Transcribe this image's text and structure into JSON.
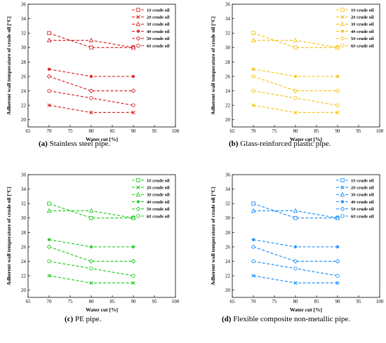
{
  "marker_order": [
    "square",
    "x",
    "triangle",
    "asterisk",
    "diamond",
    "circle"
  ],
  "charts": [
    {
      "panel": "a",
      "color": "#d62728",
      "caption": {
        "label": "(a)",
        "text": " Stainless steel pipe."
      },
      "xlabel": "Water cut [%]",
      "ylabel": "Adherent wall temperature of crude oil [°C]",
      "xticks": [
        "65",
        "70",
        "75",
        "80",
        "85",
        "90",
        "95",
        "100"
      ],
      "yticks": [
        "20",
        "22",
        "24",
        "26",
        "28",
        "30",
        "32",
        "34",
        "36"
      ]
    },
    {
      "panel": "b",
      "color": "#f5c518",
      "caption": {
        "label": "(b)",
        "text": " Glass-reinforced plastic pipe."
      },
      "xlabel": "Water cut [%]",
      "ylabel": "Adherent wall temperature of crude oil [°C]",
      "xticks": [
        "65",
        "70",
        "75",
        "80",
        "85",
        "90",
        "95",
        "100"
      ],
      "yticks": [
        "20",
        "22",
        "24",
        "26",
        "28",
        "30",
        "32",
        "34",
        "36"
      ]
    },
    {
      "panel": "c",
      "color": "#22cc22",
      "caption": {
        "label": "(c)",
        "text": " PE pipe."
      },
      "xlabel": "Water cut [%]",
      "ylabel": "Adherent wall temperature of crude oil [°C]",
      "xticks": [
        "65",
        "70",
        "75",
        "80",
        "85",
        "90",
        "95",
        "100"
      ],
      "yticks": [
        "20",
        "22",
        "24",
        "26",
        "28",
        "30",
        "32",
        "34",
        "36"
      ]
    },
    {
      "panel": "d",
      "color": "#1e90ff",
      "caption": {
        "label": "(d)",
        "text": " Flexible composite non-metallic pipe."
      },
      "xlabel": "Water cut [%]",
      "ylabel": "Adherent wall temperature of crude oil [°C]",
      "xticks": [
        "65",
        "70",
        "75",
        "80",
        "85",
        "90",
        "95",
        "100"
      ],
      "yticks": [
        "20",
        "22",
        "24",
        "26",
        "28",
        "30",
        "32",
        "34",
        "36"
      ]
    }
  ],
  "chart_data": [
    {
      "type": "line",
      "x": [
        70,
        80,
        90
      ],
      "xlim": [
        65,
        100
      ],
      "ylim": [
        19,
        36
      ],
      "legend": "top-right",
      "series": [
        {
          "name": "1# crude oil",
          "values": [
            32,
            30,
            30
          ]
        },
        {
          "name": "2# crude oil",
          "values": [
            22,
            21,
            21
          ]
        },
        {
          "name": "3# crude oil",
          "values": [
            31,
            31,
            30
          ]
        },
        {
          "name": "4# crude oil",
          "values": [
            27,
            26,
            26
          ]
        },
        {
          "name": "5# crude oil",
          "values": [
            26,
            24,
            24
          ]
        },
        {
          "name": "6# crude oil",
          "values": [
            24,
            23,
            22
          ]
        }
      ]
    },
    {
      "type": "line",
      "x": [
        70,
        80,
        90
      ],
      "xlim": [
        65,
        100
      ],
      "ylim": [
        19,
        36
      ],
      "legend": "top-right",
      "series": [
        {
          "name": "1# crude oil",
          "values": [
            32,
            30,
            30
          ]
        },
        {
          "name": "2# crude oil",
          "values": [
            22,
            21,
            21
          ]
        },
        {
          "name": "3# crude oil",
          "values": [
            31,
            31,
            30
          ]
        },
        {
          "name": "4# crude oil",
          "values": [
            27,
            26,
            26
          ]
        },
        {
          "name": "5# crude oil",
          "values": [
            26,
            24,
            24
          ]
        },
        {
          "name": "6# crude oil",
          "values": [
            24,
            23,
            22
          ]
        }
      ]
    },
    {
      "type": "line",
      "x": [
        70,
        80,
        90
      ],
      "xlim": [
        65,
        100
      ],
      "ylim": [
        19,
        36
      ],
      "legend": "top-right",
      "series": [
        {
          "name": "1# crude oil",
          "values": [
            32,
            30,
            30
          ]
        },
        {
          "name": "2# crude oil",
          "values": [
            22,
            21,
            21
          ]
        },
        {
          "name": "3# crude oil",
          "values": [
            31,
            31,
            30
          ]
        },
        {
          "name": "4# crude oil",
          "values": [
            27,
            26,
            26
          ]
        },
        {
          "name": "5# crude oil",
          "values": [
            26,
            24,
            24
          ]
        },
        {
          "name": "6# crude oil",
          "values": [
            24,
            23,
            22
          ]
        }
      ]
    },
    {
      "type": "line",
      "x": [
        70,
        80,
        90
      ],
      "xlim": [
        65,
        100
      ],
      "ylim": [
        19,
        36
      ],
      "legend": "top-right",
      "series": [
        {
          "name": "1# crude oil",
          "values": [
            32,
            30,
            30
          ]
        },
        {
          "name": "2# crude oil",
          "values": [
            22,
            21,
            21
          ]
        },
        {
          "name": "3# crude oil",
          "values": [
            31,
            31,
            30
          ]
        },
        {
          "name": "4# crude oil",
          "values": [
            27,
            26,
            26
          ]
        },
        {
          "name": "5# crude oil",
          "values": [
            26,
            24,
            24
          ]
        },
        {
          "name": "6# crude oil",
          "values": [
            24,
            23,
            22
          ]
        }
      ]
    }
  ]
}
